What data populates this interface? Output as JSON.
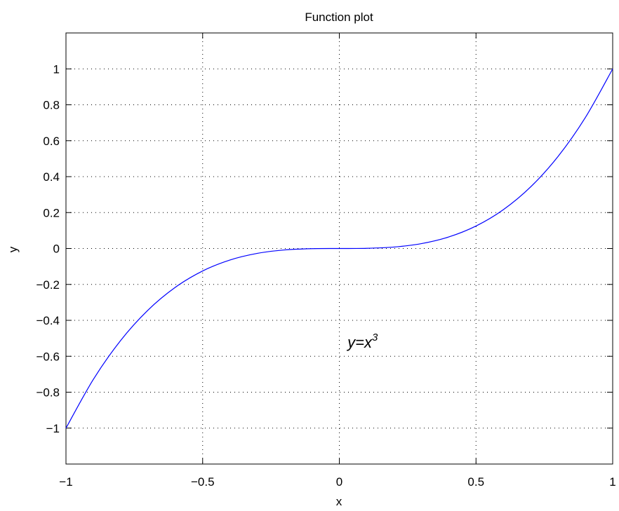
{
  "chart_data": {
    "type": "line",
    "title": "Function plot",
    "xlabel": "x",
    "ylabel": "y",
    "xlim": [
      -1,
      1
    ],
    "ylim": [
      -1.2,
      1.2
    ],
    "grid": true,
    "x_ticks": [
      -1,
      -0.5,
      0,
      0.5,
      1
    ],
    "x_tick_labels": [
      "−1",
      "−0.5",
      "0",
      "0.5",
      "1"
    ],
    "y_ticks": [
      -1,
      -0.8,
      -0.6,
      -0.4,
      -0.2,
      0,
      0.2,
      0.4,
      0.6,
      0.8,
      1
    ],
    "y_tick_labels": [
      "−1",
      "−0.8",
      "−0.6",
      "−0.4",
      "−0.2",
      "0",
      "0.2",
      "0.4",
      "0.6",
      "0.8",
      "1"
    ],
    "series": [
      {
        "color": "#0000ff",
        "x": [
          -1,
          -0.9,
          -0.8,
          -0.7,
          -0.6,
          -0.5,
          -0.4,
          -0.3,
          -0.2,
          -0.1,
          0,
          0.1,
          0.2,
          0.3,
          0.4,
          0.5,
          0.6,
          0.7,
          0.8,
          0.9,
          1
        ],
        "y": [
          -1,
          -0.729,
          -0.512,
          -0.343,
          -0.216,
          -0.125,
          -0.064,
          -0.027,
          -0.008,
          -0.001,
          0,
          0.001,
          0.008,
          0.027,
          0.064,
          0.125,
          0.216,
          0.343,
          0.512,
          0.729,
          1
        ]
      }
    ],
    "annotations": [
      {
        "text_base": "y=x",
        "text_sup": "3",
        "x": 0.03,
        "y": -0.52
      }
    ]
  }
}
